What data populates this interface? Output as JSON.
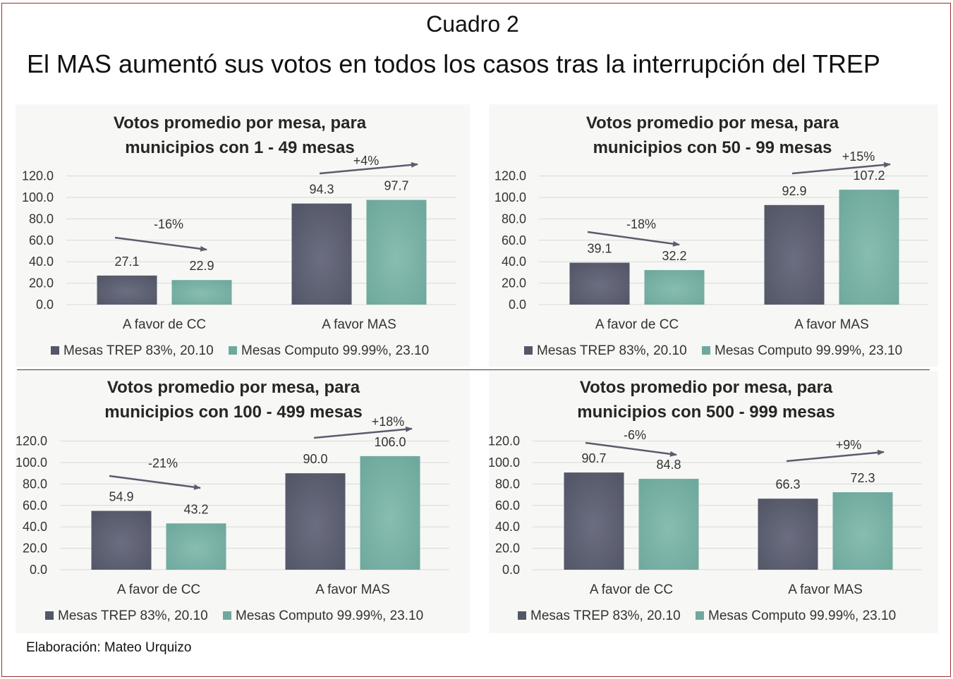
{
  "header": {
    "cuadro": "Cuadro 2",
    "title": "El MAS aumentó sus votos en todos los casos tras la interrupción del TREP"
  },
  "footer": {
    "credit": "Elaboración: Mateo Urquizo"
  },
  "colors": {
    "trep": "#545768",
    "computo": "#6fa99d",
    "panel_bg": "#f7f7f5",
    "grid": "#d9d9d9",
    "arrow": "#5a5c6e"
  },
  "chart_data": [
    {
      "type": "bar",
      "title": [
        "Votos promedio por mesa, para",
        "municipios con 1 - 49 mesas"
      ],
      "categories": [
        "A favor de CC",
        "A favor MAS"
      ],
      "series": [
        {
          "name": "Mesas TREP 83%, 20.10",
          "values": [
            27.1,
            94.3
          ],
          "labels": [
            "27.1",
            "94.3"
          ]
        },
        {
          "name": "Mesas Computo 99.99%, 23.10",
          "values": [
            22.9,
            97.7
          ],
          "labels": [
            "22.9",
            "97.7"
          ]
        }
      ],
      "yticks": [
        "0.0",
        "20.0",
        "40.0",
        "60.0",
        "80.0",
        "100.0",
        "120.0"
      ],
      "ylim": [
        0,
        120
      ],
      "annotations": [
        "-16%",
        "+4%"
      ],
      "legend": "bottom"
    },
    {
      "type": "bar",
      "title": [
        "Votos promedio por mesa, para",
        "municipios con 50 - 99 mesas"
      ],
      "categories": [
        "A favor de CC",
        "A favor MAS"
      ],
      "series": [
        {
          "name": "Mesas TREP 83%, 20.10",
          "values": [
            39.1,
            92.9
          ],
          "labels": [
            "39.1",
            "92.9"
          ]
        },
        {
          "name": "Mesas Computo 99.99%, 23.10",
          "values": [
            32.2,
            107.2
          ],
          "labels": [
            "32.2",
            "107.2"
          ]
        }
      ],
      "yticks": [
        "0.0",
        "20.0",
        "40.0",
        "60.0",
        "80.0",
        "100.0",
        "120.0"
      ],
      "ylim": [
        0,
        120
      ],
      "annotations": [
        "-18%",
        "+15%"
      ],
      "legend": "bottom"
    },
    {
      "type": "bar",
      "title": [
        "Votos promedio por mesa, para",
        "municipios con 100 - 499 mesas"
      ],
      "categories": [
        "A favor de CC",
        "A favor MAS"
      ],
      "series": [
        {
          "name": "Mesas TREP 83%, 20.10",
          "values": [
            54.9,
            90.0
          ],
          "labels": [
            "54.9",
            "90.0"
          ]
        },
        {
          "name": "Mesas Computo 99.99%, 23.10",
          "values": [
            43.2,
            106.0
          ],
          "labels": [
            "43.2",
            "106.0"
          ]
        }
      ],
      "yticks": [
        "0.0",
        "20.0",
        "40.0",
        "60.0",
        "80.0",
        "100.0",
        "120.0"
      ],
      "ylim": [
        0,
        120
      ],
      "annotations": [
        "-21%",
        "+18%"
      ],
      "legend": "bottom"
    },
    {
      "type": "bar",
      "title": [
        "Votos promedio por mesa, para",
        "municipios con 500 - 999 mesas"
      ],
      "categories": [
        "A favor de CC",
        "A favor MAS"
      ],
      "series": [
        {
          "name": "Mesas TREP 83%, 20.10",
          "values": [
            90.7,
            66.3
          ],
          "labels": [
            "90.7",
            "66.3"
          ]
        },
        {
          "name": "Mesas Computo 99.99%, 23.10",
          "values": [
            84.8,
            72.3
          ],
          "labels": [
            "84.8",
            "72.3"
          ]
        }
      ],
      "yticks": [
        "0.0",
        "20.0",
        "40.0",
        "60.0",
        "80.0",
        "100.0",
        "120.0"
      ],
      "ylim": [
        0,
        120
      ],
      "annotations": [
        "-6%",
        "+9%"
      ],
      "legend": "bottom"
    }
  ]
}
